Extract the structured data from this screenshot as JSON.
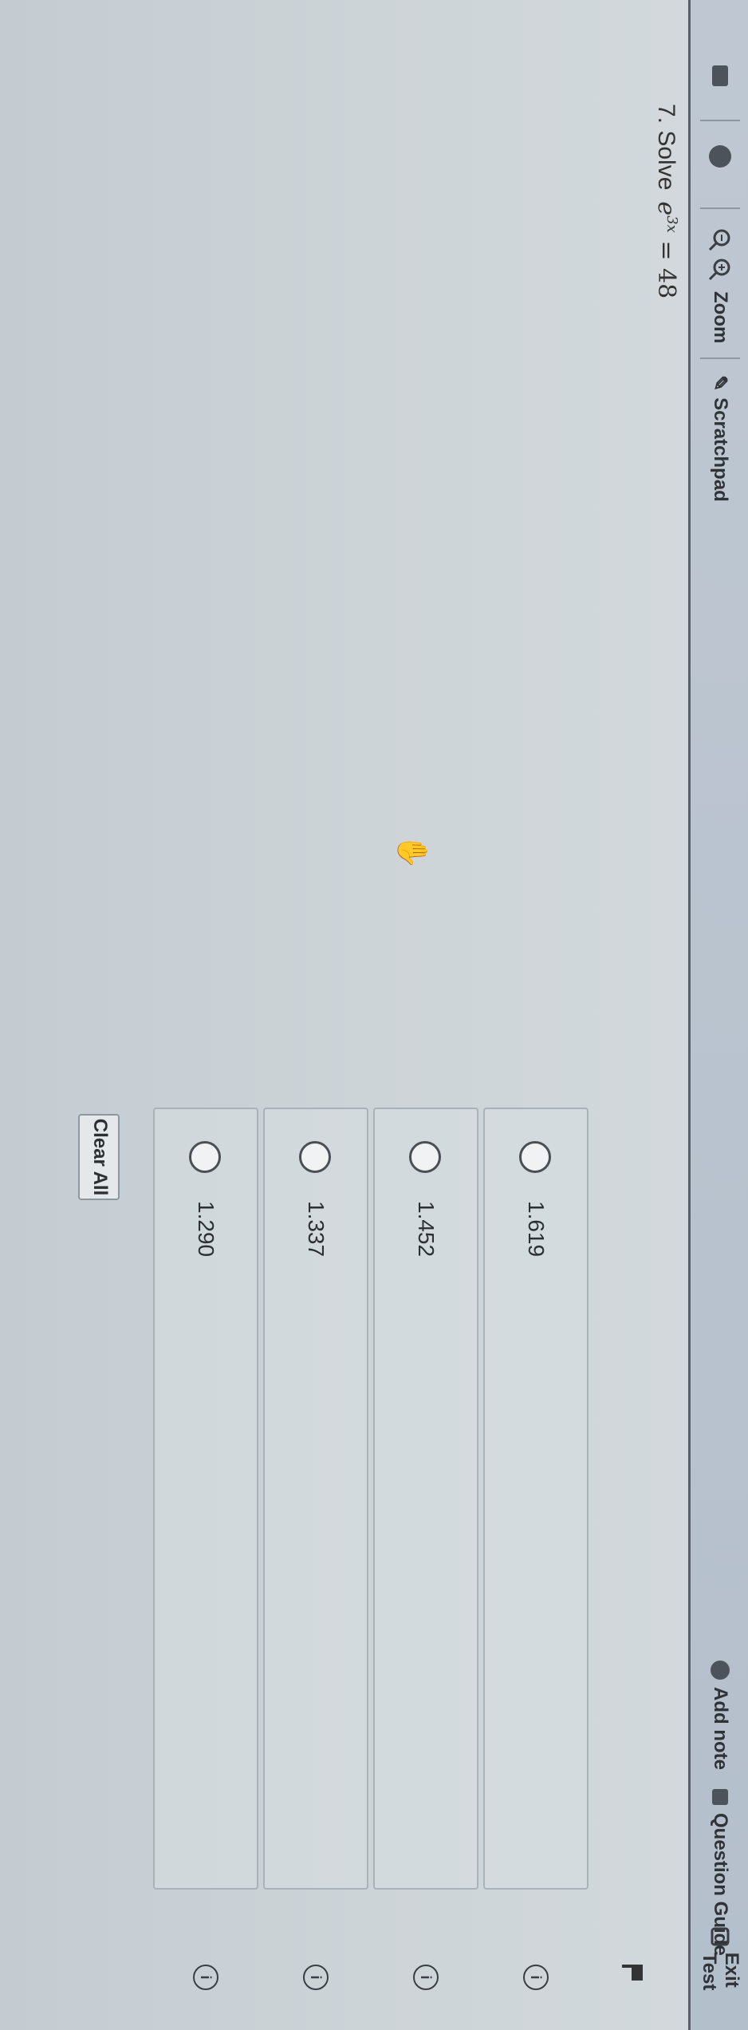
{
  "toolbar": {
    "zoom_label": "Zoom",
    "scratchpad_label": "Scratchpad",
    "add_note_label": "Add note",
    "question_guide_label": "Question Guide",
    "exit_test_label": "Exit Test"
  },
  "question": {
    "number": "7. Solve",
    "base": "e",
    "exponent": "3x",
    "rhs": "= 48"
  },
  "options": [
    {
      "label": "1.619",
      "selected": false
    },
    {
      "label": "1.452",
      "selected": false
    },
    {
      "label": "1.337",
      "selected": false
    },
    {
      "label": "1.290",
      "selected": false
    }
  ],
  "clear_all_label": "Clear All",
  "icons": {
    "info": "i"
  }
}
